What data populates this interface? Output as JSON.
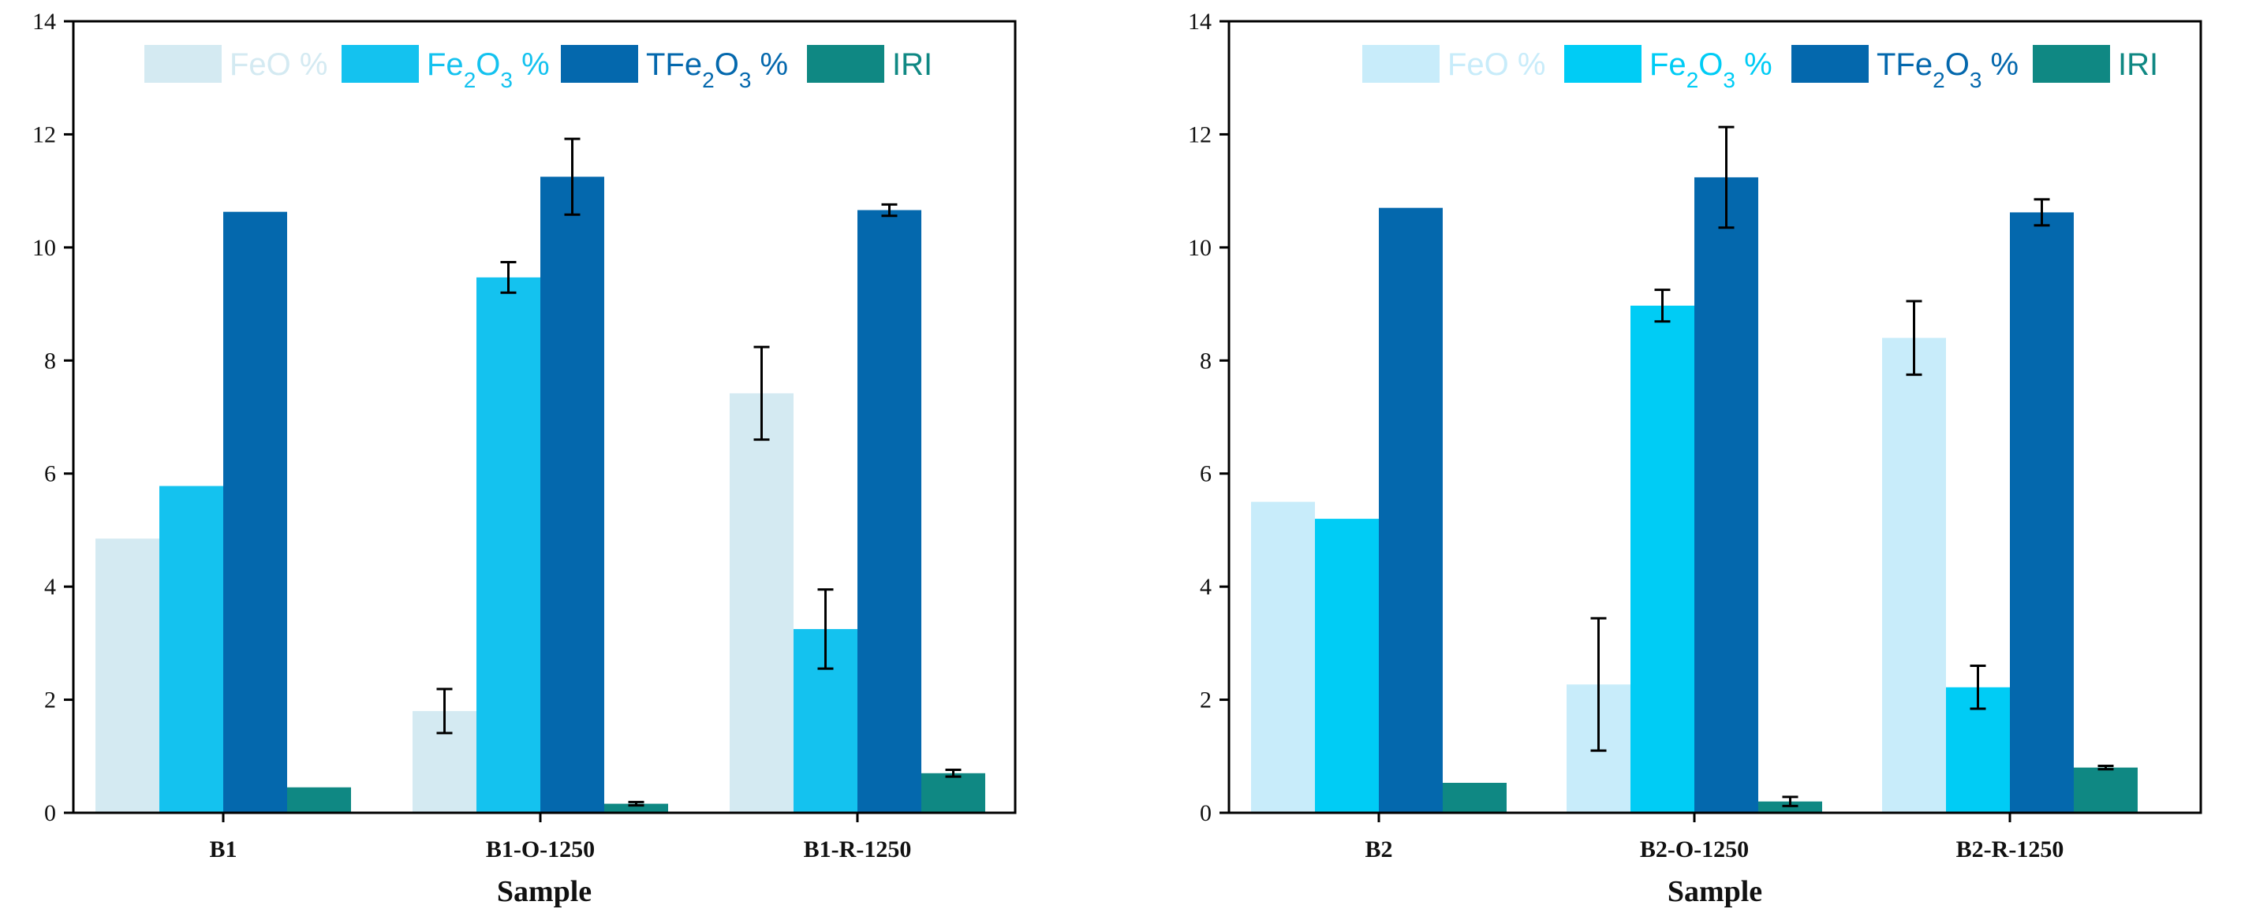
{
  "chart_data": [
    {
      "type": "bar",
      "xlabel": "Sample",
      "ylabel": "",
      "ylim": [
        0,
        14
      ],
      "yticks": [
        "0",
        "2",
        "4",
        "6",
        "8",
        "10",
        "12",
        "14"
      ],
      "categories": [
        "B1",
        "B1-O-1250",
        "B1-R-1250"
      ],
      "series": [
        {
          "name": "FeO %",
          "values": [
            4.85,
            1.8,
            7.42
          ],
          "errors": [
            0,
            0.39,
            0.82
          ]
        },
        {
          "name": "Fe2O3 %",
          "values": [
            5.78,
            9.47,
            3.25
          ],
          "errors": [
            0,
            0.27,
            0.7
          ]
        },
        {
          "name": "TFe2O3 %",
          "values": [
            10.63,
            11.25,
            10.66
          ],
          "errors": [
            0,
            0.67,
            0.1
          ]
        },
        {
          "name": "IRI",
          "values": [
            0.45,
            0.16,
            0.7
          ],
          "errors": [
            0,
            0.03,
            0.06
          ]
        }
      ]
    },
    {
      "type": "bar",
      "xlabel": "Sample",
      "ylabel": "",
      "ylim": [
        0,
        14
      ],
      "yticks": [
        "0",
        "2",
        "4",
        "6",
        "8",
        "10",
        "12",
        "14"
      ],
      "categories": [
        "B2",
        "B2-O-1250",
        "B2-R-1250"
      ],
      "series": [
        {
          "name": "FeO %",
          "values": [
            5.5,
            2.27,
            8.4
          ],
          "errors": [
            0,
            1.17,
            0.65
          ]
        },
        {
          "name": "Fe2O3 %",
          "values": [
            5.2,
            8.97,
            2.22
          ],
          "errors": [
            0,
            0.28,
            0.38
          ]
        },
        {
          "name": "TFe2O3 %",
          "values": [
            10.7,
            11.24,
            10.62
          ],
          "errors": [
            0,
            0.89,
            0.23
          ]
        },
        {
          "name": "IRI",
          "values": [
            0.53,
            0.2,
            0.8
          ],
          "errors": [
            0,
            0.08,
            0.03
          ]
        }
      ]
    }
  ],
  "legend": [
    {
      "base": "FeO %",
      "sub": "",
      "rest": ""
    },
    {
      "base": "Fe",
      "sub": "2",
      "mid": "O",
      "sub2": "3",
      "rest": " %"
    },
    {
      "base": "TFe",
      "sub": "2",
      "mid": "O",
      "sub2": "3",
      "rest": " %"
    },
    {
      "base": "IRI",
      "sub": "",
      "rest": ""
    }
  ],
  "colors": {
    "left": [
      "#d4eaf2",
      "#14c2ef",
      "#0468ad",
      "#0f8883"
    ],
    "right": [
      "#c8ecfa",
      "#00ccf5",
      "#0468ad",
      "#0f8883"
    ],
    "legend_text_left": [
      "#d4eaf2",
      "#14c2ef",
      "#0468ad",
      "#0f8883"
    ],
    "legend_text_right": [
      "#c8ecfa",
      "#00ccf5",
      "#0468ad",
      "#0f8883"
    ]
  }
}
